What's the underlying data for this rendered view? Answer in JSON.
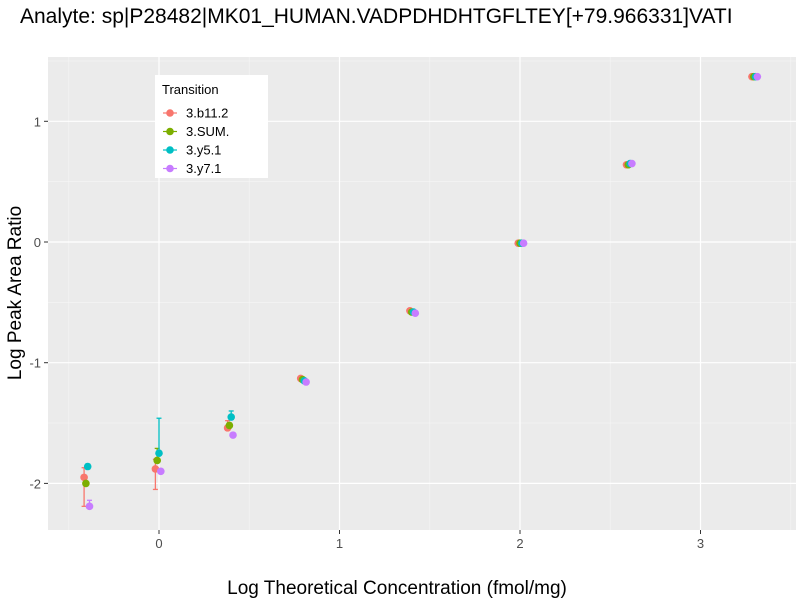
{
  "chart_data": {
    "type": "scatter",
    "title": "Analyte: sp|P28482|MK01_HUMAN.VADPDHDHTGFLTEY[+79.966331]VATI",
    "xlabel": "Log Theoretical Concentration (fmol/mg)",
    "ylabel": "Log Peak Area Ratio",
    "xlim": [
      -0.6,
      3.55
    ],
    "ylim": [
      -2.37,
      1.53
    ],
    "x_ticks": [
      "0",
      "1",
      "2",
      "3"
    ],
    "y_ticks": [
      "-2",
      "-1",
      "0",
      "1"
    ],
    "x_tick_values": [
      0,
      1,
      2,
      3
    ],
    "y_tick_values": [
      -2,
      -1,
      0,
      1
    ],
    "grid": true,
    "legend": {
      "title": "Transition",
      "placement": "top-left"
    },
    "series": [
      {
        "name": "3.b11.2",
        "color": "#F8766D",
        "x": [
          -0.415,
          -0.02,
          0.38,
          0.785,
          1.39,
          1.99,
          2.59,
          3.285
        ],
        "y": [
          -1.95,
          -1.88,
          -1.54,
          -1.13,
          -0.57,
          -0.01,
          0.64,
          1.37
        ],
        "err_low": [
          -2.19,
          -2.05,
          -1.56,
          null,
          null,
          null,
          null,
          null
        ],
        "err_high": [
          -1.87,
          -1.8,
          -1.48,
          null,
          null,
          null,
          null,
          null
        ]
      },
      {
        "name": "3.SUM.",
        "color": "#7CAE00",
        "x": [
          -0.405,
          -0.01,
          0.39,
          0.795,
          1.4,
          2.0,
          2.6,
          3.295
        ],
        "y": [
          -2.0,
          -1.81,
          -1.52,
          -1.14,
          -0.58,
          -0.01,
          0.64,
          1.37
        ],
        "err_low": [
          null,
          null,
          null,
          null,
          null,
          null,
          null,
          null
        ],
        "err_high": [
          null,
          -1.71,
          -1.5,
          null,
          null,
          null,
          null,
          null
        ]
      },
      {
        "name": "3.y5.1",
        "color": "#00BFC4",
        "x": [
          -0.395,
          0.0,
          0.4,
          0.805,
          1.41,
          2.01,
          2.61,
          3.305
        ],
        "y": [
          -1.86,
          -1.75,
          -1.45,
          -1.15,
          -0.58,
          -0.01,
          0.65,
          1.37
        ],
        "err_low": [
          -1.88,
          null,
          -1.47,
          null,
          null,
          null,
          null,
          null
        ],
        "err_high": [
          -1.84,
          -1.46,
          -1.4,
          null,
          null,
          null,
          null,
          null
        ]
      },
      {
        "name": "3.y7.1",
        "color": "#C77CFF",
        "x": [
          -0.385,
          0.01,
          0.41,
          0.815,
          1.42,
          2.02,
          2.62,
          3.315
        ],
        "y": [
          -2.19,
          -1.9,
          -1.6,
          -1.16,
          -0.59,
          -0.01,
          0.65,
          1.37
        ],
        "err_low": [
          null,
          null,
          null,
          null,
          null,
          null,
          null,
          null
        ],
        "err_high": [
          -2.14,
          null,
          null,
          null,
          null,
          null,
          null,
          null
        ]
      }
    ]
  }
}
